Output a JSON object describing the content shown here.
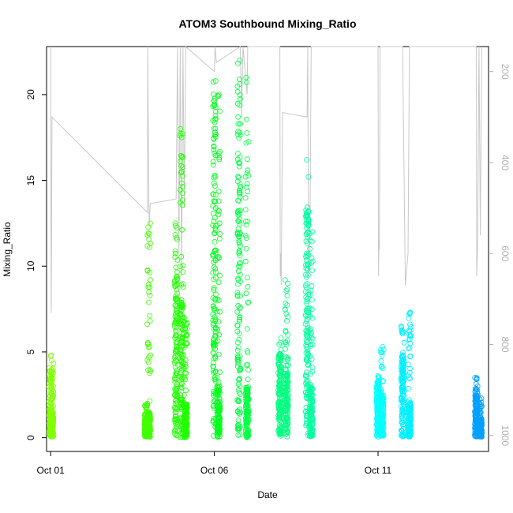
{
  "chart_data": {
    "type": "scatter",
    "title": "ATOM3 Southbound Mixing_Ratio",
    "xlabel": "Date",
    "ylabel": "Mixing_Ratio",
    "xlim": [
      "2017-09-30T21:00",
      "2017-10-14T09:00"
    ],
    "ylim": [
      -0.8,
      22.8
    ],
    "x_ticks": [
      {
        "value": "2017-10-01",
        "label": "Oct 01"
      },
      {
        "value": "2017-10-06",
        "label": "Oct 06"
      },
      {
        "value": "2017-10-11",
        "label": "Oct 11"
      }
    ],
    "y_ticks": [
      0,
      5,
      10,
      15,
      20
    ],
    "y2_axis": {
      "ylim": [
        1035,
        145
      ],
      "ticks": [
        200,
        400,
        600,
        800,
        1000
      ],
      "color": "#b0b0b0"
    },
    "marker": "open-circle",
    "series": [
      {
        "color": "#80ff00",
        "points": [
          {
            "x": "2017-10-01T00:00",
            "y_min": 0.1,
            "y_max": 4.8,
            "dense_below": 1.8
          },
          {
            "x": "2017-10-01T01:00",
            "y_min": 0.05,
            "y_max": 4.5,
            "dense_below": 1.5
          }
        ]
      },
      {
        "color": "#40ff00",
        "points": [
          {
            "x": "2017-10-03T22:00",
            "y_min": 0.05,
            "y_max": 2.0,
            "dense_below": 1.2
          },
          {
            "x": "2017-10-04T00:00",
            "y_min": 0.05,
            "y_max": 12.5,
            "dense_below": 1.5
          }
        ]
      },
      {
        "color": "#20ff00",
        "points": [
          {
            "x": "2017-10-04T20:00",
            "y_min": 0.0,
            "y_max": 12.5,
            "dense_below": 9.5
          },
          {
            "x": "2017-10-05T00:00",
            "y_min": 0.0,
            "y_max": 18.0,
            "dense_below": 8.0
          },
          {
            "x": "2017-10-05T03:00",
            "y_min": 0.0,
            "y_max": 7.0,
            "dense_below": 2.0
          }
        ]
      },
      {
        "color": "#00ff1a",
        "points": [
          {
            "x": "2017-10-06T00:00",
            "y_min": 0.0,
            "y_max": 20.8,
            "dense_below": 20.5
          },
          {
            "x": "2017-10-06T03:00",
            "y_min": 0.0,
            "y_max": 20.0,
            "dense_below": 3.0
          }
        ]
      },
      {
        "color": "#00ff40",
        "points": [
          {
            "x": "2017-10-06T18:00",
            "y_min": 0.0,
            "y_max": 22.0,
            "dense_below": 20.0
          },
          {
            "x": "2017-10-07T00:00",
            "y_min": 0.0,
            "y_max": 21.0,
            "dense_below": 3.0
          }
        ]
      },
      {
        "color": "#00ff80",
        "points": [
          {
            "x": "2017-10-08T00:00",
            "y_min": 0.05,
            "y_max": 5.8,
            "dense_below": 5.0
          },
          {
            "x": "2017-10-08T05:00",
            "y_min": 0.05,
            "y_max": 9.2,
            "dense_below": 4.0
          }
        ]
      },
      {
        "color": "#00ffa0",
        "points": [
          {
            "x": "2017-10-08T20:00",
            "y_min": 0.05,
            "y_max": 16.2,
            "dense_below": 13.5
          },
          {
            "x": "2017-10-08T23:00",
            "y_min": 0.05,
            "y_max": 12.0,
            "dense_below": 3.0
          }
        ]
      },
      {
        "color": "#00ffff",
        "points": [
          {
            "x": "2017-10-11T00:00",
            "y_min": 0.05,
            "y_max": 3.6,
            "dense_below": 3.5
          },
          {
            "x": "2017-10-11T03:00",
            "y_min": 0.05,
            "y_max": 5.3,
            "dense_below": 2.5
          }
        ]
      },
      {
        "color": "#00f0ff",
        "points": [
          {
            "x": "2017-10-11T18:00",
            "y_min": 0.05,
            "y_max": 6.5,
            "dense_below": 5.0
          },
          {
            "x": "2017-10-11T23:00",
            "y_min": 0.05,
            "y_max": 7.3,
            "dense_below": 2.0
          }
        ]
      },
      {
        "color": "#00a0ff",
        "points": [
          {
            "x": "2017-10-14T00:00",
            "y_min": 0.05,
            "y_max": 3.5,
            "dense_below": 2.5
          },
          {
            "x": "2017-10-14T03:00",
            "y_min": 0.05,
            "y_max": 2.3,
            "dense_below": 1.0
          }
        ]
      }
    ],
    "pressure_profile": {
      "color": "#c8c8c8",
      "points": [
        [
          "2017-10-01T00:00",
          145
        ],
        [
          "2017-10-01T00:10",
          520
        ],
        [
          "2017-10-01T00:20",
          700
        ],
        [
          "2017-10-01T00:30",
          730
        ],
        [
          "2017-10-01T00:40",
          560
        ],
        [
          "2017-10-01T01:00",
          300
        ],
        [
          "2017-10-03T23:00",
          510
        ],
        [
          "2017-10-03T23:10",
          145
        ],
        [
          "2017-10-04T00:00",
          490
        ],
        [
          "2017-10-04T00:20",
          540
        ],
        [
          "2017-10-04T00:30",
          520
        ],
        [
          "2017-10-04T01:00",
          490
        ],
        [
          "2017-10-04T20:00",
          480
        ],
        [
          "2017-10-04T21:00",
          145
        ],
        [
          "2017-10-04T22:00",
          600
        ],
        [
          "2017-10-04T23:00",
          145
        ],
        [
          "2017-10-05T00:00",
          650
        ],
        [
          "2017-10-05T01:00",
          145
        ],
        [
          "2017-10-05T02:00",
          500
        ],
        [
          "2017-10-05T03:00",
          145
        ],
        [
          "2017-10-06T00:00",
          200
        ],
        [
          "2017-10-06T00:30",
          145
        ],
        [
          "2017-10-06T01:30",
          180
        ],
        [
          "2017-10-06T19:00",
          145
        ],
        [
          "2017-10-06T20:00",
          300
        ],
        [
          "2017-10-06T21:00",
          145
        ],
        [
          "2017-10-07T00:00",
          250
        ],
        [
          "2017-10-07T00:30",
          145
        ],
        [
          "2017-10-08T00:00",
          145
        ],
        [
          "2017-10-08T00:20",
          650
        ],
        [
          "2017-10-08T00:40",
          600
        ],
        [
          "2017-10-08T01:00",
          670
        ],
        [
          "2017-10-08T02:00",
          290
        ],
        [
          "2017-10-08T20:00",
          300
        ],
        [
          "2017-10-08T20:30",
          145
        ],
        [
          "2017-10-08T21:00",
          650
        ],
        [
          "2017-10-08T22:00",
          600
        ],
        [
          "2017-10-08T23:00",
          145
        ],
        [
          "2017-10-11T00:00",
          145
        ],
        [
          "2017-10-11T00:20",
          650
        ],
        [
          "2017-10-11T00:40",
          570
        ],
        [
          "2017-10-11T01:00",
          590
        ],
        [
          "2017-10-11T01:30",
          145
        ],
        [
          "2017-10-11T18:00",
          145
        ],
        [
          "2017-10-11T20:00",
          670
        ],
        [
          "2017-10-11T22:00",
          600
        ],
        [
          "2017-10-11T23:00",
          145
        ],
        [
          "2017-10-14T00:00",
          145
        ],
        [
          "2017-10-14T00:20",
          650
        ],
        [
          "2017-10-14T01:00",
          580
        ],
        [
          "2017-10-14T02:00",
          145
        ],
        [
          "2017-10-14T03:00",
          560
        ],
        [
          "2017-10-14T04:00",
          145
        ]
      ]
    }
  }
}
